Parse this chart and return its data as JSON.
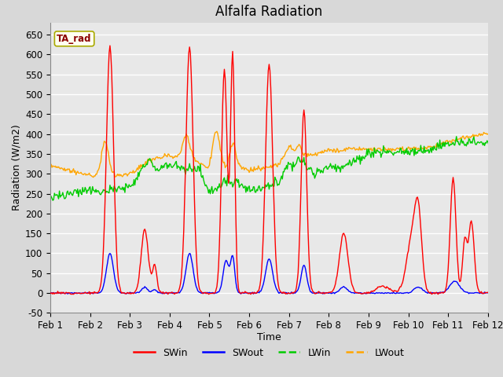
{
  "title": "Alfalfa Radiation",
  "xlabel": "Time",
  "ylabel": "Radiation (W/m2)",
  "ylim": [
    -50,
    680
  ],
  "xlim": [
    0,
    264
  ],
  "annotation_label": "TA_rad",
  "x_tick_labels": [
    "Feb 1",
    "Feb 2",
    "Feb 3",
    "Feb 4",
    "Feb 5",
    "Feb 6",
    "Feb 7",
    "Feb 8",
    "Feb 9",
    "Feb 10",
    "Feb 11",
    "Feb 12"
  ],
  "x_tick_positions": [
    0,
    24,
    48,
    72,
    96,
    120,
    144,
    168,
    192,
    216,
    240,
    264
  ],
  "y_ticks": [
    -50,
    0,
    50,
    100,
    150,
    200,
    250,
    300,
    350,
    400,
    450,
    500,
    550,
    600,
    650
  ],
  "colors": {
    "SWin": "#FF0000",
    "SWout": "#0000FF",
    "LWin": "#00CC00",
    "LWout": "#FFA500"
  },
  "fig_bg": "#D8D8D8",
  "plot_bg": "#E8E8E8",
  "grid_color": "#FFFFFF"
}
